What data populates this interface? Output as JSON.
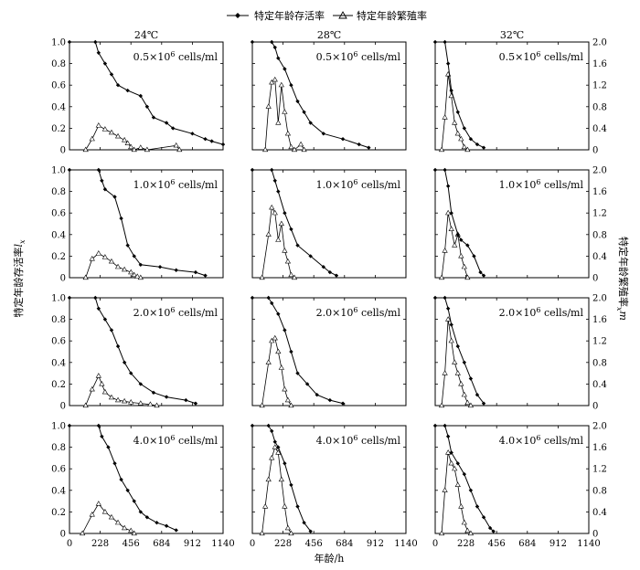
{
  "legend": {
    "survival_label": "特定年龄存活率",
    "fecundity_label": "特定年龄繁殖率"
  },
  "temperatures": [
    "24℃",
    "28℃",
    "32℃"
  ],
  "densities": [
    {
      "coef": "0.5",
      "unit": "cells/ml"
    },
    {
      "coef": "1.0",
      "unit": "cells/ml"
    },
    {
      "coef": "2.0",
      "unit": "cells/ml"
    },
    {
      "coef": "4.0",
      "unit": "cells/ml"
    }
  ],
  "axes": {
    "xlabel": "年龄/h",
    "ylabel_left_main": "特定年龄存活率",
    "ylabel_left_sym": "l",
    "ylabel_left_sub": "x",
    "ylabel_right_main": "特定年龄繁殖率",
    "ylabel_right_sym": "m",
    "ylabel_right_sub": "x"
  },
  "chart_data": {
    "type": "line",
    "xlabel": "年龄/h",
    "xticks": [
      "0",
      "228",
      "456",
      "684",
      "912",
      "1140"
    ],
    "xlim": [
      0,
      1140
    ],
    "left_yticks": [
      "0",
      "0.2",
      "0.4",
      "0.6",
      "0.8",
      "1.0"
    ],
    "left_ylim": [
      0,
      1.0
    ],
    "right_yticks": [
      "0",
      "0.4",
      "0.8",
      "1.2",
      "1.6",
      "2.0"
    ],
    "right_ylim": [
      0,
      2.0
    ],
    "panels": [
      {
        "temperature": "24℃",
        "density": "0.5×10^6 cells/ml",
        "lx": [
          [
            0,
            1
          ],
          [
            192,
            1
          ],
          [
            216,
            0.9
          ],
          [
            264,
            0.8
          ],
          [
            312,
            0.7
          ],
          [
            360,
            0.6
          ],
          [
            432,
            0.55
          ],
          [
            528,
            0.5
          ],
          [
            576,
            0.4
          ],
          [
            624,
            0.3
          ],
          [
            720,
            0.25
          ],
          [
            768,
            0.2
          ],
          [
            912,
            0.15
          ],
          [
            1008,
            0.1
          ],
          [
            1056,
            0.08
          ],
          [
            1140,
            0.05
          ]
        ],
        "mx": [
          [
            120,
            0
          ],
          [
            168,
            0.2
          ],
          [
            216,
            0.45
          ],
          [
            264,
            0.38
          ],
          [
            312,
            0.32
          ],
          [
            360,
            0.25
          ],
          [
            408,
            0.18
          ],
          [
            432,
            0.12
          ],
          [
            456,
            0.05
          ],
          [
            480,
            0
          ],
          [
            528,
            0.04
          ],
          [
            576,
            0
          ],
          [
            792,
            0.08
          ],
          [
            816,
            0
          ]
        ]
      },
      {
        "temperature": "28℃",
        "density": "0.5×10^6 cells/ml",
        "lx": [
          [
            0,
            1
          ],
          [
            144,
            1
          ],
          [
            168,
            0.95
          ],
          [
            192,
            0.85
          ],
          [
            240,
            0.75
          ],
          [
            288,
            0.6
          ],
          [
            336,
            0.45
          ],
          [
            384,
            0.35
          ],
          [
            432,
            0.25
          ],
          [
            528,
            0.15
          ],
          [
            672,
            0.1
          ],
          [
            792,
            0.05
          ],
          [
            864,
            0.02
          ]
        ],
        "mx": [
          [
            96,
            0
          ],
          [
            120,
            0.8
          ],
          [
            144,
            1.25
          ],
          [
            168,
            1.3
          ],
          [
            192,
            0.5
          ],
          [
            216,
            1.2
          ],
          [
            240,
            0.7
          ],
          [
            264,
            0.3
          ],
          [
            288,
            0.05
          ],
          [
            312,
            0
          ],
          [
            360,
            0.1
          ],
          [
            384,
            0
          ]
        ]
      },
      {
        "temperature": "32℃",
        "density": "0.5×10^6 cells/ml",
        "lx": [
          [
            0,
            1
          ],
          [
            72,
            1
          ],
          [
            96,
            0.8
          ],
          [
            120,
            0.55
          ],
          [
            168,
            0.35
          ],
          [
            216,
            0.2
          ],
          [
            264,
            0.1
          ],
          [
            312,
            0.05
          ],
          [
            360,
            0.02
          ]
        ],
        "mx": [
          [
            48,
            0
          ],
          [
            72,
            0.6
          ],
          [
            96,
            1.4
          ],
          [
            120,
            1.0
          ],
          [
            144,
            0.5
          ],
          [
            168,
            0.3
          ],
          [
            192,
            0.2
          ],
          [
            216,
            0.05
          ],
          [
            240,
            0
          ]
        ]
      },
      {
        "temperature": "24℃",
        "density": "1.0×10^6 cells/ml",
        "lx": [
          [
            0,
            1
          ],
          [
            216,
            1
          ],
          [
            240,
            0.9
          ],
          [
            264,
            0.82
          ],
          [
            336,
            0.75
          ],
          [
            384,
            0.55
          ],
          [
            432,
            0.3
          ],
          [
            480,
            0.2
          ],
          [
            528,
            0.12
          ],
          [
            672,
            0.1
          ],
          [
            792,
            0.07
          ],
          [
            936,
            0.05
          ],
          [
            1008,
            0.02
          ]
        ],
        "mx": [
          [
            120,
            0
          ],
          [
            168,
            0.35
          ],
          [
            216,
            0.45
          ],
          [
            264,
            0.38
          ],
          [
            312,
            0.3
          ],
          [
            360,
            0.2
          ],
          [
            408,
            0.15
          ],
          [
            456,
            0.1
          ],
          [
            480,
            0.05
          ],
          [
            504,
            0.02
          ],
          [
            528,
            0
          ]
        ]
      },
      {
        "temperature": "28℃",
        "density": "1.0×10^6 cells/ml",
        "lx": [
          [
            0,
            1
          ],
          [
            144,
            1
          ],
          [
            168,
            0.9
          ],
          [
            192,
            0.8
          ],
          [
            240,
            0.6
          ],
          [
            288,
            0.45
          ],
          [
            336,
            0.3
          ],
          [
            432,
            0.2
          ],
          [
            528,
            0.1
          ],
          [
            576,
            0.05
          ],
          [
            624,
            0.02
          ]
        ],
        "mx": [
          [
            72,
            0
          ],
          [
            120,
            0.8
          ],
          [
            144,
            1.3
          ],
          [
            168,
            1.2
          ],
          [
            192,
            0.7
          ],
          [
            216,
            1.0
          ],
          [
            240,
            0.5
          ],
          [
            264,
            0.3
          ],
          [
            288,
            0.05
          ],
          [
            312,
            0
          ]
        ]
      },
      {
        "temperature": "32℃",
        "density": "1.0×10^6 cells/ml",
        "lx": [
          [
            0,
            1
          ],
          [
            72,
            1
          ],
          [
            96,
            0.85
          ],
          [
            120,
            0.6
          ],
          [
            168,
            0.4
          ],
          [
            192,
            0.35
          ],
          [
            240,
            0.3
          ],
          [
            288,
            0.2
          ],
          [
            336,
            0.05
          ],
          [
            360,
            0.02
          ]
        ],
        "mx": [
          [
            48,
            0
          ],
          [
            72,
            0.5
          ],
          [
            96,
            1.2
          ],
          [
            120,
            0.9
          ],
          [
            144,
            0.6
          ],
          [
            168,
            0.8
          ],
          [
            192,
            0.4
          ],
          [
            216,
            0.2
          ],
          [
            240,
            0
          ]
        ]
      },
      {
        "temperature": "24℃",
        "density": "2.0×10^6 cells/ml",
        "lx": [
          [
            0,
            1
          ],
          [
            192,
            1
          ],
          [
            216,
            0.9
          ],
          [
            264,
            0.8
          ],
          [
            312,
            0.7
          ],
          [
            360,
            0.55
          ],
          [
            408,
            0.4
          ],
          [
            456,
            0.3
          ],
          [
            528,
            0.2
          ],
          [
            624,
            0.12
          ],
          [
            720,
            0.08
          ],
          [
            864,
            0.05
          ],
          [
            936,
            0.02
          ]
        ],
        "mx": [
          [
            120,
            0
          ],
          [
            168,
            0.3
          ],
          [
            216,
            0.55
          ],
          [
            240,
            0.4
          ],
          [
            264,
            0.25
          ],
          [
            312,
            0.15
          ],
          [
            360,
            0.1
          ],
          [
            408,
            0.08
          ],
          [
            456,
            0.06
          ],
          [
            528,
            0.04
          ],
          [
            600,
            0.02
          ],
          [
            648,
            0
          ]
        ]
      },
      {
        "temperature": "28℃",
        "density": "2.0×10^6 cells/ml",
        "lx": [
          [
            0,
            1
          ],
          [
            120,
            1
          ],
          [
            144,
            0.95
          ],
          [
            192,
            0.85
          ],
          [
            240,
            0.7
          ],
          [
            288,
            0.5
          ],
          [
            336,
            0.3
          ],
          [
            408,
            0.2
          ],
          [
            480,
            0.1
          ],
          [
            576,
            0.05
          ],
          [
            672,
            0.02
          ]
        ],
        "mx": [
          [
            72,
            0
          ],
          [
            120,
            0.8
          ],
          [
            144,
            1.2
          ],
          [
            168,
            1.25
          ],
          [
            192,
            1.0
          ],
          [
            216,
            0.7
          ],
          [
            240,
            0.3
          ],
          [
            264,
            0.1
          ],
          [
            288,
            0
          ]
        ]
      },
      {
        "temperature": "32℃",
        "density": "2.0×10^6 cells/ml",
        "lx": [
          [
            0,
            1
          ],
          [
            72,
            1
          ],
          [
            96,
            0.9
          ],
          [
            120,
            0.75
          ],
          [
            168,
            0.55
          ],
          [
            216,
            0.4
          ],
          [
            264,
            0.25
          ],
          [
            312,
            0.1
          ],
          [
            360,
            0.02
          ]
        ],
        "mx": [
          [
            48,
            0
          ],
          [
            72,
            0.6
          ],
          [
            96,
            1.6
          ],
          [
            120,
            1.2
          ],
          [
            144,
            0.8
          ],
          [
            168,
            0.6
          ],
          [
            192,
            0.4
          ],
          [
            216,
            0.2
          ],
          [
            240,
            0.05
          ],
          [
            264,
            0
          ]
        ]
      },
      {
        "temperature": "24℃",
        "density": "4.0×10^6 cells/ml",
        "lx": [
          [
            0,
            1
          ],
          [
            216,
            1
          ],
          [
            240,
            0.9
          ],
          [
            288,
            0.8
          ],
          [
            336,
            0.65
          ],
          [
            384,
            0.5
          ],
          [
            432,
            0.4
          ],
          [
            480,
            0.3
          ],
          [
            528,
            0.2
          ],
          [
            576,
            0.15
          ],
          [
            648,
            0.1
          ],
          [
            720,
            0.07
          ],
          [
            792,
            0.03
          ]
        ],
        "mx": [
          [
            96,
            0
          ],
          [
            168,
            0.35
          ],
          [
            216,
            0.55
          ],
          [
            264,
            0.4
          ],
          [
            312,
            0.3
          ],
          [
            360,
            0.2
          ],
          [
            408,
            0.1
          ],
          [
            456,
            0.05
          ],
          [
            480,
            0
          ]
        ]
      },
      {
        "temperature": "28℃",
        "density": "4.0×10^6 cells/ml",
        "lx": [
          [
            0,
            1
          ],
          [
            120,
            1
          ],
          [
            144,
            0.95
          ],
          [
            168,
            0.85
          ],
          [
            192,
            0.8
          ],
          [
            240,
            0.65
          ],
          [
            288,
            0.45
          ],
          [
            336,
            0.25
          ],
          [
            384,
            0.1
          ],
          [
            432,
            0.02
          ]
        ],
        "mx": [
          [
            72,
            0
          ],
          [
            96,
            0.5
          ],
          [
            120,
            1.0
          ],
          [
            144,
            1.4
          ],
          [
            168,
            1.6
          ],
          [
            192,
            1.5
          ],
          [
            216,
            1.0
          ],
          [
            240,
            0.5
          ],
          [
            264,
            0.1
          ],
          [
            288,
            0
          ]
        ]
      },
      {
        "temperature": "32℃",
        "density": "4.0×10^6 cells/ml",
        "lx": [
          [
            0,
            1
          ],
          [
            72,
            1
          ],
          [
            96,
            0.9
          ],
          [
            120,
            0.75
          ],
          [
            168,
            0.65
          ],
          [
            216,
            0.55
          ],
          [
            264,
            0.4
          ],
          [
            312,
            0.25
          ],
          [
            360,
            0.15
          ],
          [
            408,
            0.05
          ],
          [
            432,
            0.02
          ]
        ],
        "mx": [
          [
            48,
            0
          ],
          [
            72,
            0.8
          ],
          [
            96,
            1.5
          ],
          [
            120,
            1.3
          ],
          [
            144,
            1.2
          ],
          [
            168,
            0.9
          ],
          [
            192,
            0.5
          ],
          [
            216,
            0.2
          ],
          [
            240,
            0.05
          ],
          [
            264,
            0
          ]
        ]
      }
    ]
  }
}
